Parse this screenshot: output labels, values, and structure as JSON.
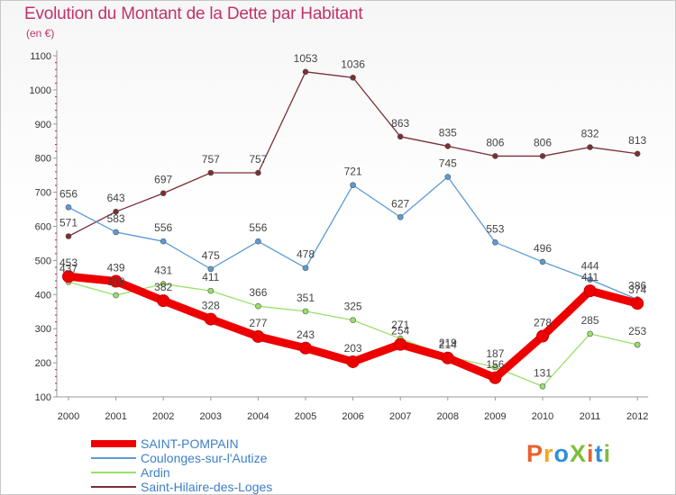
{
  "header": {
    "title": "Evolution du Montant de la Dette par Habitant",
    "subtitle": "(en €)"
  },
  "brand": {
    "text": "ProXiti",
    "letter_colors": [
      "#e8612c",
      "#f5a623",
      "#2f8fd8",
      "#7bbf3a",
      "#e8612c",
      "#2f8fd8",
      "#7bbf3a"
    ]
  },
  "chart_data": {
    "type": "line",
    "title": "Evolution du Montant de la Dette par Habitant",
    "ylabel": "(en €)",
    "xlabel": "",
    "x": [
      "2000",
      "2001",
      "2002",
      "2003",
      "2004",
      "2005",
      "2006",
      "2007",
      "2008",
      "2009",
      "2010",
      "2011",
      "2012"
    ],
    "ylim": [
      100,
      1100
    ],
    "yticks": [
      "100",
      "200",
      "300",
      "400",
      "500",
      "600",
      "700",
      "800",
      "900",
      "1000",
      "1100"
    ],
    "grid": false,
    "legend": "bottom-left",
    "series": [
      {
        "name": "SAINT-POMPAIN",
        "color": "#ee0000",
        "values": [
          453,
          439,
          382,
          328,
          277,
          243,
          203,
          254,
          214,
          156,
          278,
          411,
          374
        ]
      },
      {
        "name": "Coulonges-sur-l'Autize",
        "color": "#5b9bd5",
        "values": [
          656,
          583,
          556,
          475,
          556,
          478,
          721,
          627,
          745,
          553,
          496,
          444,
          386
        ]
      },
      {
        "name": "Ardin",
        "color": "#99e06a",
        "values": [
          437,
          398,
          431,
          411,
          366,
          351,
          325,
          271,
          219,
          187,
          131,
          285,
          253
        ]
      },
      {
        "name": "Saint-Hilaire-des-Loges",
        "color": "#7b2f35",
        "values": [
          571,
          643,
          697,
          757,
          757,
          1053,
          1036,
          863,
          835,
          806,
          806,
          832,
          813
        ]
      }
    ],
    "point_labels": [
      [
        "453",
        "439",
        "382",
        "328",
        "277",
        "243",
        "203",
        "254",
        "214",
        "156",
        "278",
        "411",
        "374"
      ],
      [
        "656",
        "583",
        "556",
        "475",
        "556",
        "478",
        "721",
        "627",
        "745",
        "553",
        "496",
        "444",
        "386"
      ],
      [
        "437",
        "398",
        "431",
        "411",
        "366",
        "351",
        "325",
        "271",
        "219",
        "187",
        "131",
        "285",
        "253"
      ],
      [
        "571",
        "643",
        "697",
        "757",
        "757",
        "1053",
        "1036",
        "863",
        "835",
        "806",
        "806",
        "832",
        "813"
      ]
    ]
  }
}
